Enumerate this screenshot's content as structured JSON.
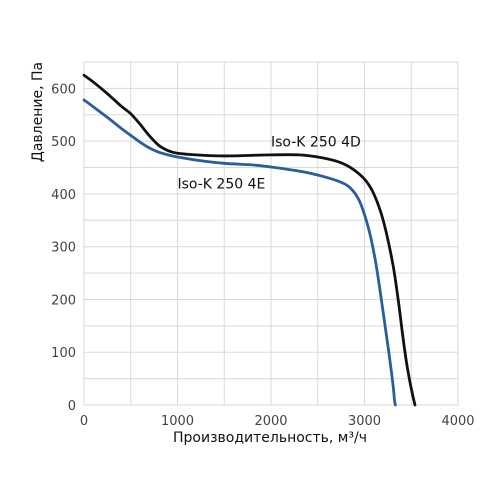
{
  "chart_data": {
    "type": "line",
    "title": "",
    "xlabel": "Производительность, м³/ч",
    "ylabel": "Давление, Па",
    "xlim": [
      0,
      4000
    ],
    "ylim": [
      0,
      650
    ],
    "x_ticks": [
      "0",
      "1000",
      "2000",
      "3000",
      "4000"
    ],
    "y_ticks": [
      "0",
      "100",
      "200",
      "300",
      "400",
      "500",
      "600"
    ],
    "grid": true,
    "series": [
      {
        "name": "Iso-K 250 4D",
        "color": "#111111",
        "label_anchor": [
          2000,
          490
        ],
        "points": [
          [
            0,
            625
          ],
          [
            100,
            612
          ],
          [
            250,
            590
          ],
          [
            400,
            566
          ],
          [
            500,
            552
          ],
          [
            600,
            532
          ],
          [
            700,
            510
          ],
          [
            800,
            492
          ],
          [
            900,
            482
          ],
          [
            1000,
            477
          ],
          [
            1200,
            474
          ],
          [
            1500,
            472
          ],
          [
            2000,
            474
          ],
          [
            2300,
            474
          ],
          [
            2500,
            470
          ],
          [
            2700,
            462
          ],
          [
            2850,
            450
          ],
          [
            3000,
            428
          ],
          [
            3100,
            400
          ],
          [
            3200,
            350
          ],
          [
            3300,
            270
          ],
          [
            3360,
            200
          ],
          [
            3410,
            130
          ],
          [
            3450,
            80
          ],
          [
            3490,
            40
          ],
          [
            3520,
            15
          ],
          [
            3540,
            0
          ]
        ]
      },
      {
        "name": "Iso-K 250 4E",
        "color": "#2a5e9a",
        "label_anchor": [
          1000,
          410
        ],
        "points": [
          [
            0,
            578
          ],
          [
            100,
            565
          ],
          [
            250,
            545
          ],
          [
            400,
            524
          ],
          [
            500,
            511
          ],
          [
            600,
            498
          ],
          [
            700,
            487
          ],
          [
            800,
            479
          ],
          [
            900,
            474
          ],
          [
            1000,
            470
          ],
          [
            1200,
            464
          ],
          [
            1500,
            458
          ],
          [
            1800,
            455
          ],
          [
            2000,
            451
          ],
          [
            2200,
            446
          ],
          [
            2400,
            440
          ],
          [
            2600,
            431
          ],
          [
            2750,
            422
          ],
          [
            2850,
            411
          ],
          [
            2950,
            385
          ],
          [
            3050,
            330
          ],
          [
            3120,
            270
          ],
          [
            3180,
            200
          ],
          [
            3220,
            150
          ],
          [
            3260,
            100
          ],
          [
            3290,
            60
          ],
          [
            3310,
            30
          ],
          [
            3320,
            10
          ],
          [
            3330,
            0
          ]
        ]
      }
    ]
  }
}
